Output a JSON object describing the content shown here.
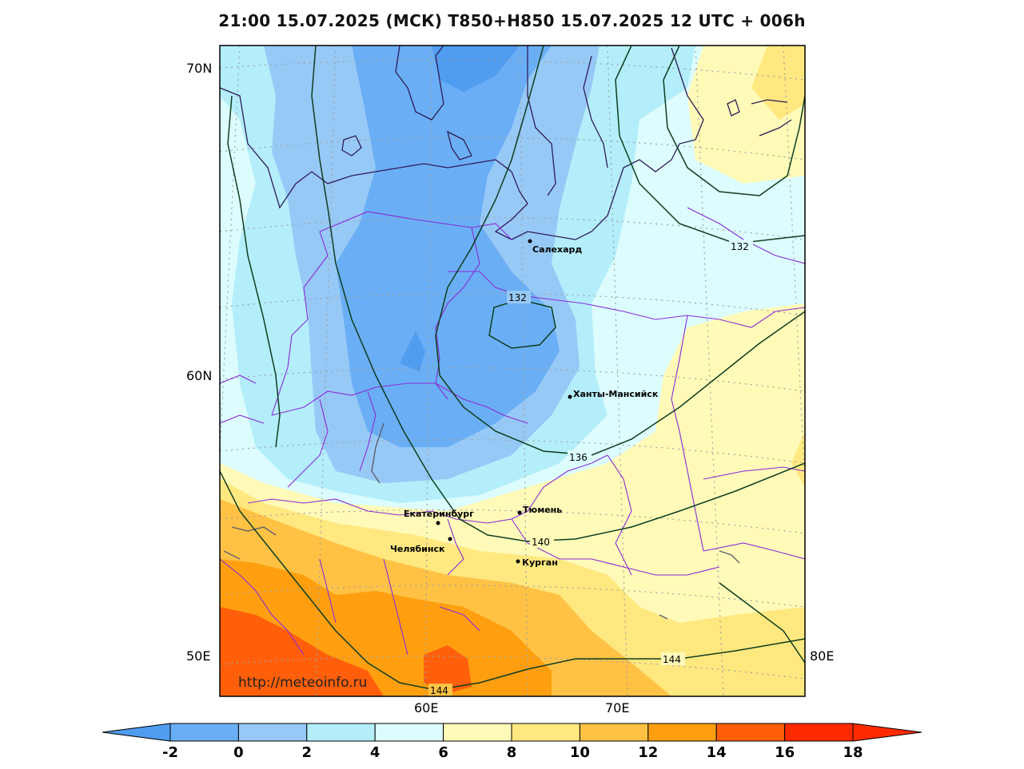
{
  "title": "21:00 15.07.2025 (МСК) T850+H850 15.07.2025 12 UTC + 006h",
  "watermark": "http://meteoinfo.ru",
  "lat_labels": [
    "70N",
    "60N",
    "50E"
  ],
  "lon_labels": [
    "60E",
    "70E",
    "80E"
  ],
  "cities": [
    {
      "name": "Салехард"
    },
    {
      "name": "Ханты-Мансийск"
    },
    {
      "name": "Тюмень"
    },
    {
      "name": "Екатеринбург"
    },
    {
      "name": "Челябинск"
    },
    {
      "name": "Курган"
    }
  ],
  "contour_labels": [
    "132",
    "132",
    "136",
    "140",
    "144",
    "144"
  ],
  "colorbar": {
    "ticks": [
      "-2",
      "0",
      "2",
      "4",
      "6",
      "8",
      "10",
      "12",
      "14",
      "16",
      "18"
    ],
    "colors": [
      "#4f9cf0",
      "#6aaff5",
      "#97c9f7",
      "#b3eefa",
      "#dcfcfd",
      "#fffab8",
      "#ffe87f",
      "#ffc245",
      "#ff9f10",
      "#ff5f0a",
      "#ff2a00"
    ]
  },
  "colors": {
    "coast": "#2e1b55",
    "border": "#8a2bd6",
    "contour": "#0f3d1f",
    "grid": "#a0a0a0"
  }
}
